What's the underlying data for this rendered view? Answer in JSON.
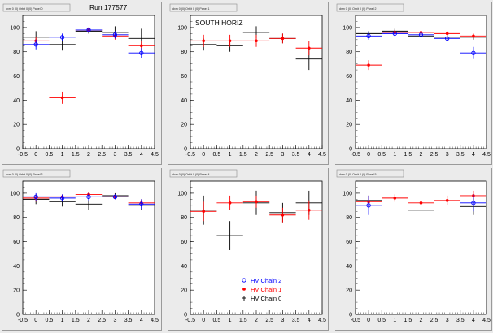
{
  "run_label": "Run 177577",
  "x_ticks": [
    "-0.5",
    "0",
    "0.5",
    "1",
    "1.5",
    "2",
    "2.5",
    "3",
    "3.5",
    "4",
    "4.5"
  ],
  "y_ticks": [
    "0",
    "20",
    "40",
    "60",
    "80",
    "100"
  ],
  "legend": [
    {
      "label": "HV Chain 2",
      "color": "#0000ff",
      "marker": "circle"
    },
    {
      "label": "HV Chain 1",
      "color": "#ff0000",
      "marker": "star"
    },
    {
      "label": "HV Chain 0",
      "color": "#000000",
      "marker": "plus"
    }
  ],
  "chart_data": [
    {
      "type": "scatter",
      "title": "dxm 0 (0) Orbit 0 (0) Panel 0",
      "annotation": "",
      "xlim": [
        -0.5,
        4.5
      ],
      "ylim": [
        0,
        110
      ],
      "series": [
        {
          "name": "HV Chain 2",
          "color": "#0000ff",
          "points": [
            {
              "x": 0,
              "y": 86,
              "ex": 0.5,
              "ey": 4
            },
            {
              "x": 1,
              "y": 92,
              "ex": 0.5,
              "ey": 3
            },
            {
              "x": 2,
              "y": 98,
              "ex": 0.5,
              "ey": 2
            },
            {
              "x": 3,
              "y": 94,
              "ex": 0.5,
              "ey": 3
            },
            {
              "x": 4,
              "y": 79,
              "ex": 0.5,
              "ey": 4
            }
          ]
        },
        {
          "name": "HV Chain 1",
          "color": "#ff0000",
          "points": [
            {
              "x": 0,
              "y": 89,
              "ex": 0.5,
              "ey": 3
            },
            {
              "x": 1,
              "y": 42,
              "ex": 0.5,
              "ey": 5
            },
            {
              "x": 2,
              "y": 98,
              "ex": 0.5,
              "ey": 2
            },
            {
              "x": 3,
              "y": 93,
              "ex": 0.5,
              "ey": 3
            },
            {
              "x": 4,
              "y": 85,
              "ex": 0.5,
              "ey": 4
            }
          ]
        },
        {
          "name": "HV Chain 0",
          "color": "#000000",
          "points": [
            {
              "x": 0,
              "y": 92,
              "ex": 0.5,
              "ey": 5
            },
            {
              "x": 1,
              "y": 86,
              "ex": 0.5,
              "ey": 5
            },
            {
              "x": 2,
              "y": 97,
              "ex": 0.5,
              "ey": 2
            },
            {
              "x": 3,
              "y": 96,
              "ex": 0.5,
              "ey": 5
            },
            {
              "x": 4,
              "y": 91,
              "ex": 0.5,
              "ey": 8
            }
          ]
        }
      ]
    },
    {
      "type": "scatter",
      "title": "dxm 0 (0) Orbit 0 (0) Panel 1",
      "annotation": "SOUTH HORIZ",
      "xlim": [
        -0.5,
        4.5
      ],
      "ylim": [
        0,
        110
      ],
      "series": [
        {
          "name": "HV Chain 1",
          "color": "#ff0000",
          "points": [
            {
              "x": 0,
              "y": 89,
              "ex": 0.5,
              "ey": 5
            },
            {
              "x": 1,
              "y": 89,
              "ex": 0.5,
              "ey": 5
            },
            {
              "x": 2,
              "y": 89,
              "ex": 0.5,
              "ey": 5
            },
            {
              "x": 3,
              "y": 91,
              "ex": 0.5,
              "ey": 4
            },
            {
              "x": 4,
              "y": 83,
              "ex": 0.5,
              "ey": 6
            }
          ]
        },
        {
          "name": "HV Chain 0",
          "color": "#000000",
          "points": [
            {
              "x": 0,
              "y": 86,
              "ex": 0.5,
              "ey": 5
            },
            {
              "x": 1,
              "y": 85,
              "ex": 0.5,
              "ey": 5
            },
            {
              "x": 2,
              "y": 96,
              "ex": 0.5,
              "ey": 5
            },
            {
              "x": 3,
              "y": 91,
              "ex": 0.5,
              "ey": 4
            },
            {
              "x": 4,
              "y": 74,
              "ex": 0.5,
              "ey": 9
            }
          ]
        }
      ]
    },
    {
      "type": "scatter",
      "title": "dxm 0 (0) Orbit 0 (0) Panel 2",
      "annotation": "",
      "xlim": [
        -0.5,
        4.5
      ],
      "ylim": [
        0,
        110
      ],
      "series": [
        {
          "name": "HV Chain 2",
          "color": "#0000ff",
          "points": [
            {
              "x": 0,
              "y": 93,
              "ex": 0.5,
              "ey": 3
            },
            {
              "x": 1,
              "y": 95,
              "ex": 0.5,
              "ey": 2
            },
            {
              "x": 2,
              "y": 94,
              "ex": 0.5,
              "ey": 2
            },
            {
              "x": 3,
              "y": 91,
              "ex": 0.5,
              "ey": 2
            },
            {
              "x": 4,
              "y": 79,
              "ex": 0.5,
              "ey": 5
            }
          ]
        },
        {
          "name": "HV Chain 1",
          "color": "#ff0000",
          "points": [
            {
              "x": 0,
              "y": 69,
              "ex": 0.5,
              "ey": 4
            },
            {
              "x": 1,
              "y": 96,
              "ex": 0.5,
              "ey": 2
            },
            {
              "x": 2,
              "y": 96,
              "ex": 0.5,
              "ey": 2
            },
            {
              "x": 3,
              "y": 95,
              "ex": 0.5,
              "ey": 2
            },
            {
              "x": 4,
              "y": 93,
              "ex": 0.5,
              "ey": 2
            }
          ]
        },
        {
          "name": "HV Chain 0",
          "color": "#000000",
          "points": [
            {
              "x": 0,
              "y": 95,
              "ex": 0.5,
              "ey": 2
            },
            {
              "x": 1,
              "y": 97,
              "ex": 0.5,
              "ey": 2
            },
            {
              "x": 2,
              "y": 93,
              "ex": 0.5,
              "ey": 2
            },
            {
              "x": 3,
              "y": 92,
              "ex": 0.5,
              "ey": 2
            },
            {
              "x": 4,
              "y": 92,
              "ex": 0.5,
              "ey": 2
            }
          ]
        }
      ]
    },
    {
      "type": "scatter",
      "title": "dxm 0 (0) Orbit 0 (0) Panel 3",
      "annotation": "",
      "xlim": [
        -0.5,
        4.5
      ],
      "ylim": [
        0,
        110
      ],
      "series": [
        {
          "name": "HV Chain 2",
          "color": "#0000ff",
          "points": [
            {
              "x": 0,
              "y": 97,
              "ex": 0.5,
              "ey": 3
            },
            {
              "x": 1,
              "y": 96,
              "ex": 0.5,
              "ey": 3
            },
            {
              "x": 2,
              "y": 97,
              "ex": 0.5,
              "ey": 3
            },
            {
              "x": 3,
              "y": 97,
              "ex": 0.5,
              "ey": 2
            },
            {
              "x": 4,
              "y": 91,
              "ex": 0.5,
              "ey": 4
            }
          ]
        },
        {
          "name": "HV Chain 1",
          "color": "#ff0000",
          "points": [
            {
              "x": 0,
              "y": 96,
              "ex": 0.5,
              "ey": 3
            },
            {
              "x": 1,
              "y": 97,
              "ex": 0.5,
              "ey": 2
            },
            {
              "x": 2,
              "y": 99,
              "ex": 0.5,
              "ey": 2
            },
            {
              "x": 3,
              "y": 97,
              "ex": 0.5,
              "ey": 2
            },
            {
              "x": 4,
              "y": 92,
              "ex": 0.5,
              "ey": 3
            }
          ]
        },
        {
          "name": "HV Chain 0",
          "color": "#000000",
          "points": [
            {
              "x": 0,
              "y": 95,
              "ex": 0.5,
              "ey": 4
            },
            {
              "x": 1,
              "y": 93,
              "ex": 0.5,
              "ey": 4
            },
            {
              "x": 2,
              "y": 91,
              "ex": 0.5,
              "ey": 5
            },
            {
              "x": 3,
              "y": 98,
              "ex": 0.5,
              "ey": 2
            },
            {
              "x": 4,
              "y": 90,
              "ex": 0.5,
              "ey": 4
            }
          ]
        }
      ]
    },
    {
      "type": "scatter",
      "title": "dxm 0 (0) Orbit 0 (0) Panel 4",
      "annotation": "",
      "xlim": [
        -0.5,
        4.5
      ],
      "ylim": [
        0,
        110
      ],
      "series": [
        {
          "name": "HV Chain 1",
          "color": "#ff0000",
          "points": [
            {
              "x": 0,
              "y": 85,
              "ex": 0.5,
              "ey": 8
            },
            {
              "x": 1,
              "y": 92,
              "ex": 0.5,
              "ey": 6
            },
            {
              "x": 2,
              "y": 93,
              "ex": 0.5,
              "ey": 5
            },
            {
              "x": 3,
              "y": 82,
              "ex": 0.5,
              "ey": 6
            },
            {
              "x": 4,
              "y": 86,
              "ex": 0.5,
              "ey": 8
            }
          ]
        },
        {
          "name": "HV Chain 0",
          "color": "#000000",
          "points": [
            {
              "x": 0,
              "y": 86,
              "ex": 0.5,
              "ey": 12
            },
            {
              "x": 1,
              "y": 65,
              "ex": 0.5,
              "ey": 12
            },
            {
              "x": 2,
              "y": 92,
              "ex": 0.5,
              "ey": 10
            },
            {
              "x": 3,
              "y": 84,
              "ex": 0.5,
              "ey": 8
            },
            {
              "x": 4,
              "y": 92,
              "ex": 0.5,
              "ey": 10
            }
          ]
        }
      ]
    },
    {
      "type": "scatter",
      "title": "dxm 0 (0) Orbit 0 (0) Panel 5",
      "annotation": "",
      "xlim": [
        -0.5,
        4.5
      ],
      "ylim": [
        0,
        110
      ],
      "series": [
        {
          "name": "HV Chain 2",
          "color": "#0000ff",
          "points": [
            {
              "x": 0,
              "y": 90,
              "ex": 0.5,
              "ey": 8
            },
            {
              "x": 4,
              "y": 92,
              "ex": 0.5,
              "ey": 7
            }
          ]
        },
        {
          "name": "HV Chain 1",
          "color": "#ff0000",
          "points": [
            {
              "x": 0,
              "y": 93,
              "ex": 0.5,
              "ey": 5
            },
            {
              "x": 1,
              "y": 96,
              "ex": 0.5,
              "ey": 3
            },
            {
              "x": 2,
              "y": 92,
              "ex": 0.5,
              "ey": 4
            },
            {
              "x": 3,
              "y": 94,
              "ex": 0.5,
              "ey": 4
            },
            {
              "x": 4,
              "y": 98,
              "ex": 0.5,
              "ey": 4
            }
          ]
        },
        {
          "name": "HV Chain 0",
          "color": "#000000",
          "points": [
            {
              "x": 0,
              "y": 94,
              "ex": 0.5,
              "ey": 4
            },
            {
              "x": 2,
              "y": 86,
              "ex": 0.5,
              "ey": 6
            },
            {
              "x": 4,
              "y": 89,
              "ex": 0.5,
              "ey": 7
            }
          ]
        }
      ]
    }
  ]
}
